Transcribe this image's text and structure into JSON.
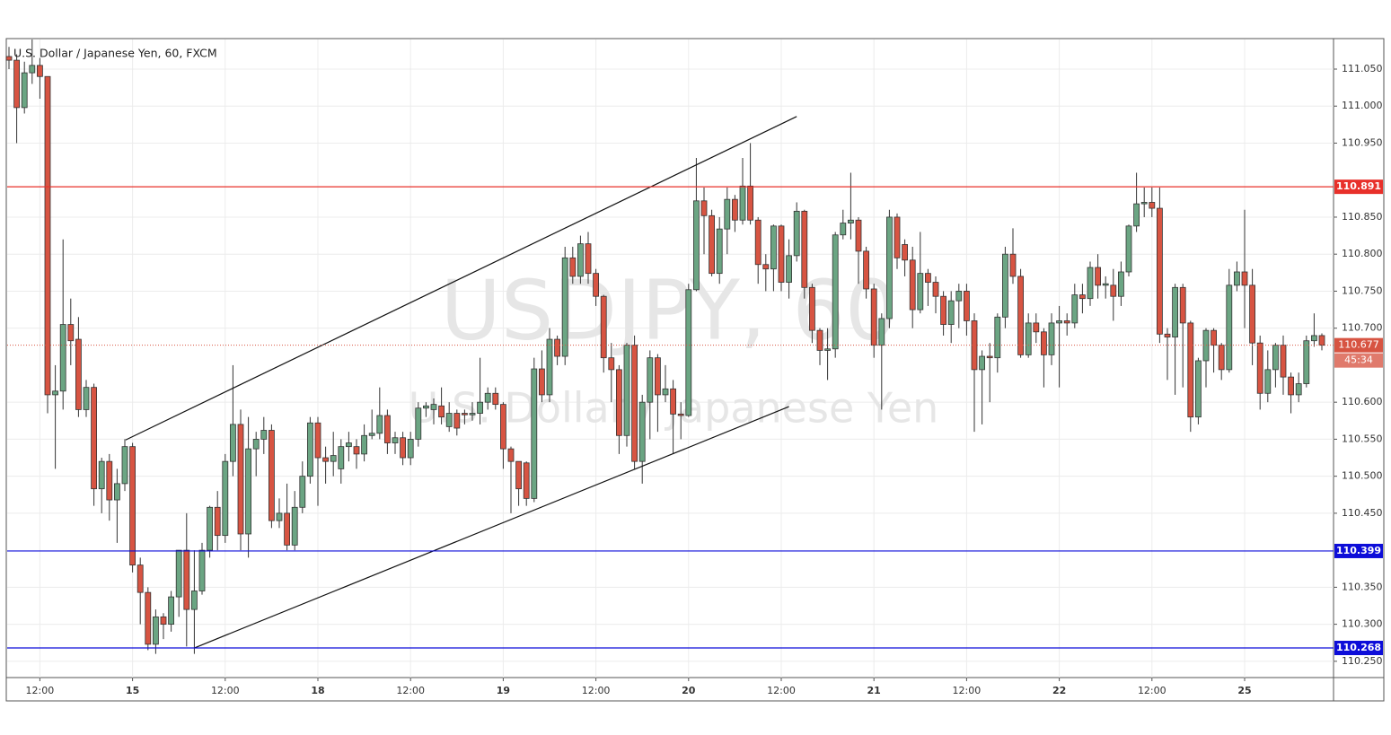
{
  "chart_data": {
    "type": "candlestick",
    "title": "U.S. Dollar / Japanese Yen, 60, FXCM",
    "watermark": "USDJPY, 60",
    "watermark_subtitle": "U.S. Dollar / Japanese Yen",
    "up_color": "#6ba583",
    "down_color": "#d75442",
    "grid": true,
    "categories": [
      null,
      null,
      null,
      null,
      "12:00",
      null,
      null,
      null,
      null,
      null,
      null,
      null,
      null,
      null,
      null,
      null,
      "15",
      null,
      null,
      null,
      null,
      null,
      null,
      null,
      null,
      null,
      null,
      null,
      "12:00",
      null,
      null,
      null,
      null,
      null,
      null,
      null,
      null,
      null,
      null,
      null,
      "18",
      null,
      null,
      null,
      null,
      null,
      null,
      null,
      null,
      null,
      null,
      null,
      "12:00",
      null,
      null,
      null,
      null,
      null,
      null,
      null,
      null,
      null,
      null,
      null,
      "19",
      null,
      null,
      null,
      null,
      null,
      null,
      null,
      null,
      null,
      null,
      null,
      "12:00",
      null,
      null,
      null,
      null,
      null,
      null,
      null,
      null,
      null,
      null,
      null,
      "20",
      null,
      null,
      null,
      null,
      null,
      null,
      null,
      null,
      null,
      null,
      null,
      "12:00",
      null,
      null,
      null,
      null,
      null,
      null,
      null,
      null,
      null,
      null,
      null,
      "21",
      null,
      null,
      null,
      null,
      null,
      null,
      null,
      null,
      null,
      null,
      null,
      "12:00",
      null,
      null,
      null,
      null,
      null,
      null,
      null,
      null,
      null,
      null,
      null,
      "22",
      null,
      null,
      null,
      null,
      null,
      null,
      null,
      null,
      null,
      null,
      null,
      "12:00",
      null,
      null,
      null,
      null,
      null,
      null,
      null,
      null,
      null,
      null,
      null,
      "25",
      null,
      null,
      null,
      null,
      null,
      null,
      null,
      null,
      null,
      null
    ],
    "open": [
      111.067,
      111.062,
      110.998,
      111.045,
      111.055,
      111.04,
      110.61,
      110.615,
      110.705,
      110.685,
      110.59,
      110.62,
      110.483,
      110.52,
      110.468,
      110.49,
      110.54,
      110.38,
      110.343,
      110.273,
      110.31,
      110.3,
      110.337,
      110.4,
      110.32,
      110.345,
      110.4,
      110.458,
      110.42,
      110.52,
      110.57,
      110.422,
      110.537,
      110.55,
      110.562,
      110.44,
      110.45,
      110.407,
      110.458,
      110.5,
      110.572,
      110.525,
      110.52,
      110.51,
      110.54,
      110.54,
      110.53,
      110.555,
      110.558,
      110.582,
      110.545,
      110.552,
      110.525,
      110.55,
      110.592,
      110.59,
      110.595,
      110.567,
      110.585,
      110.585,
      110.583,
      110.585,
      110.6,
      110.612,
      110.597,
      110.537,
      110.52,
      110.518,
      110.47,
      110.645,
      110.61,
      110.685,
      110.662,
      110.795,
      110.77,
      110.814,
      110.774,
      110.743,
      110.66,
      110.644,
      110.555,
      110.677,
      110.52,
      110.6,
      110.66,
      110.61,
      110.618,
      110.584,
      110.582,
      110.752,
      110.872,
      110.852,
      110.774,
      110.834,
      110.874,
      110.846,
      110.892,
      110.846,
      110.786,
      110.78,
      110.838,
      110.762,
      110.798,
      110.858,
      110.755,
      110.697,
      110.67,
      110.672,
      110.826,
      110.842,
      110.846,
      110.804,
      110.753,
      110.677,
      110.713,
      110.85,
      110.813,
      110.792,
      110.725,
      110.774,
      110.762,
      110.743,
      110.705,
      110.737,
      110.75,
      110.71,
      110.644,
      110.662,
      110.66,
      110.715,
      110.8,
      110.77,
      110.664,
      110.707,
      110.695,
      110.664,
      110.707,
      110.71,
      110.707,
      110.745,
      110.74,
      110.782,
      110.758,
      110.758,
      110.743,
      110.776,
      110.838,
      110.868,
      110.87,
      110.862,
      110.692,
      110.688,
      110.755,
      110.707,
      110.58,
      110.656,
      110.697,
      110.677,
      110.644,
      110.758,
      110.776,
      110.758,
      110.68,
      110.612,
      110.644,
      110.677,
      110.634,
      110.61,
      110.625,
      110.683,
      110.69
    ],
    "high": [
      111.08,
      111.07,
      111.06,
      111.09,
      111.065,
      111.04,
      110.65,
      110.82,
      110.74,
      110.715,
      110.63,
      110.625,
      110.525,
      110.53,
      110.51,
      110.55,
      110.545,
      110.39,
      110.35,
      110.32,
      110.315,
      110.345,
      110.4,
      110.45,
      110.4,
      110.41,
      110.46,
      110.48,
      110.53,
      110.65,
      110.59,
      110.58,
      110.56,
      110.58,
      110.57,
      110.47,
      110.49,
      110.48,
      110.52,
      110.58,
      110.58,
      110.54,
      110.56,
      110.55,
      110.56,
      110.55,
      110.57,
      110.59,
      110.62,
      110.59,
      110.56,
      110.56,
      110.56,
      110.6,
      110.6,
      110.605,
      110.62,
      110.6,
      110.59,
      110.59,
      110.6,
      110.66,
      110.62,
      110.62,
      110.6,
      110.54,
      110.52,
      110.52,
      110.66,
      110.67,
      110.7,
      110.69,
      110.81,
      110.81,
      110.825,
      110.83,
      110.78,
      110.745,
      110.68,
      110.65,
      110.68,
      110.69,
      110.61,
      110.67,
      110.665,
      110.65,
      110.63,
      110.6,
      110.76,
      110.93,
      110.89,
      110.86,
      110.85,
      110.89,
      110.88,
      110.93,
      110.95,
      110.85,
      110.8,
      110.84,
      110.84,
      110.82,
      110.87,
      110.86,
      110.76,
      110.7,
      110.7,
      110.83,
      110.86,
      110.91,
      110.85,
      110.81,
      110.76,
      110.72,
      110.86,
      110.855,
      110.82,
      110.81,
      110.83,
      110.78,
      110.77,
      110.75,
      110.75,
      110.76,
      110.76,
      110.72,
      110.67,
      110.68,
      110.72,
      110.81,
      110.835,
      110.78,
      110.72,
      110.72,
      110.7,
      110.72,
      110.73,
      110.72,
      110.76,
      110.76,
      110.79,
      110.8,
      110.77,
      110.78,
      110.79,
      110.84,
      110.91,
      110.89,
      110.89,
      110.89,
      110.7,
      110.76,
      110.76,
      110.71,
      110.66,
      110.7,
      110.7,
      110.68,
      110.78,
      110.79,
      110.86,
      110.78,
      110.69,
      110.67,
      110.68,
      110.69,
      110.64,
      110.64,
      110.69,
      110.72,
      110.693
    ],
    "low": [
      111.05,
      110.95,
      110.99,
      111.03,
      111.01,
      110.585,
      110.51,
      110.59,
      110.65,
      110.58,
      110.58,
      110.46,
      110.45,
      110.44,
      110.41,
      110.48,
      110.37,
      110.3,
      110.265,
      110.26,
      110.28,
      110.29,
      110.31,
      110.27,
      110.26,
      110.34,
      110.39,
      110.4,
      110.41,
      110.5,
      110.4,
      110.39,
      110.5,
      110.53,
      110.43,
      110.43,
      110.4,
      110.4,
      110.45,
      110.49,
      110.46,
      110.49,
      110.5,
      110.49,
      110.52,
      110.51,
      110.52,
      110.55,
      110.55,
      110.53,
      110.53,
      110.515,
      110.515,
      110.54,
      110.58,
      110.57,
      110.57,
      110.56,
      110.555,
      110.57,
      110.575,
      110.57,
      110.59,
      110.59,
      110.51,
      110.45,
      110.46,
      110.46,
      110.465,
      110.6,
      110.6,
      110.65,
      110.65,
      110.76,
      110.76,
      110.76,
      110.73,
      110.64,
      110.6,
      110.53,
      110.54,
      110.51,
      110.49,
      110.55,
      110.56,
      110.6,
      110.53,
      110.55,
      110.58,
      110.75,
      110.8,
      110.77,
      110.76,
      110.8,
      110.83,
      110.84,
      110.84,
      110.76,
      110.75,
      110.75,
      110.75,
      110.74,
      110.79,
      110.74,
      110.68,
      110.65,
      110.63,
      110.66,
      110.82,
      110.82,
      110.76,
      110.74,
      110.66,
      110.59,
      110.7,
      110.78,
      110.77,
      110.7,
      110.72,
      110.73,
      110.72,
      110.69,
      110.68,
      110.7,
      110.69,
      110.56,
      110.57,
      110.6,
      110.64,
      110.7,
      110.76,
      110.66,
      110.66,
      110.68,
      110.62,
      110.65,
      110.62,
      110.69,
      110.7,
      110.72,
      110.73,
      110.74,
      110.74,
      110.71,
      110.73,
      110.77,
      110.83,
      110.85,
      110.85,
      110.68,
      110.63,
      110.61,
      110.62,
      110.56,
      110.57,
      110.62,
      110.64,
      110.63,
      110.64,
      110.75,
      110.7,
      110.65,
      110.59,
      110.6,
      110.62,
      110.61,
      110.585,
      110.6,
      110.62,
      110.675,
      110.67
    ],
    "close": [
      111.062,
      110.998,
      111.045,
      111.055,
      111.04,
      110.61,
      110.615,
      110.705,
      110.683,
      110.59,
      110.62,
      110.483,
      110.52,
      110.468,
      110.49,
      110.54,
      110.38,
      110.343,
      110.273,
      110.31,
      110.3,
      110.337,
      110.4,
      110.32,
      110.345,
      110.4,
      110.458,
      110.42,
      110.52,
      110.57,
      110.422,
      110.537,
      110.55,
      110.562,
      110.44,
      110.45,
      110.407,
      110.458,
      110.5,
      110.572,
      110.525,
      110.52,
      110.528,
      110.54,
      110.545,
      110.53,
      110.555,
      110.558,
      110.582,
      110.545,
      110.552,
      110.525,
      110.55,
      110.592,
      110.595,
      110.597,
      110.58,
      110.585,
      110.565,
      110.583,
      110.585,
      110.6,
      110.612,
      110.597,
      110.537,
      110.52,
      110.483,
      110.47,
      110.645,
      110.61,
      110.685,
      110.662,
      110.795,
      110.77,
      110.814,
      110.774,
      110.743,
      110.66,
      110.644,
      110.555,
      110.677,
      110.52,
      110.6,
      110.66,
      110.61,
      110.618,
      110.584,
      110.582,
      110.752,
      110.872,
      110.852,
      110.774,
      110.834,
      110.874,
      110.846,
      110.892,
      110.846,
      110.786,
      110.78,
      110.838,
      110.762,
      110.798,
      110.858,
      110.755,
      110.697,
      110.67,
      110.672,
      110.826,
      110.842,
      110.846,
      110.804,
      110.753,
      110.677,
      110.713,
      110.85,
      110.795,
      110.792,
      110.725,
      110.774,
      110.762,
      110.743,
      110.705,
      110.737,
      110.75,
      110.71,
      110.644,
      110.662,
      110.66,
      110.715,
      110.8,
      110.77,
      110.664,
      110.707,
      110.695,
      110.664,
      110.707,
      110.71,
      110.707,
      110.745,
      110.74,
      110.782,
      110.758,
      110.76,
      110.743,
      110.776,
      110.838,
      110.868,
      110.87,
      110.862,
      110.692,
      110.688,
      110.755,
      110.707,
      110.58,
      110.656,
      110.697,
      110.677,
      110.644,
      110.758,
      110.776,
      110.758,
      110.68,
      110.612,
      110.644,
      110.677,
      110.634,
      110.61,
      110.625,
      110.683,
      110.69,
      110.677
    ],
    "ylim": [
      110.228,
      111.09
    ],
    "yticks": [
      {
        "value": 110.25,
        "label": "110.250"
      },
      {
        "value": 110.3,
        "label": "110.300"
      },
      {
        "value": 110.35,
        "label": "110.350"
      },
      {
        "value": 110.45,
        "label": "110.450"
      },
      {
        "value": 110.5,
        "label": "110.500"
      },
      {
        "value": 110.55,
        "label": "110.550"
      },
      {
        "value": 110.6,
        "label": "110.600"
      },
      {
        "value": 110.7,
        "label": "110.700"
      },
      {
        "value": 110.75,
        "label": "110.750"
      },
      {
        "value": 110.8,
        "label": "110.800"
      },
      {
        "value": 110.85,
        "label": "110.850"
      },
      {
        "value": 110.95,
        "label": "110.950"
      },
      {
        "value": 111,
        "label": "111.000"
      },
      {
        "value": 111.05,
        "label": "111.050"
      }
    ],
    "hlines": [
      {
        "value": 110.891,
        "color": "#e8302a"
      },
      {
        "value": 110.399,
        "color": "#0d0dd9"
      },
      {
        "value": 110.268,
        "color": "#0d0dd9"
      }
    ],
    "last_price": 110.677,
    "countdown": "45:34",
    "trend_lines": [
      {
        "x": [
          15.1,
          102
        ],
        "y": [
          110.549,
          110.986
        ]
      },
      {
        "x": [
          24,
          101
        ],
        "y": [
          110.268,
          110.594
        ]
      }
    ]
  }
}
